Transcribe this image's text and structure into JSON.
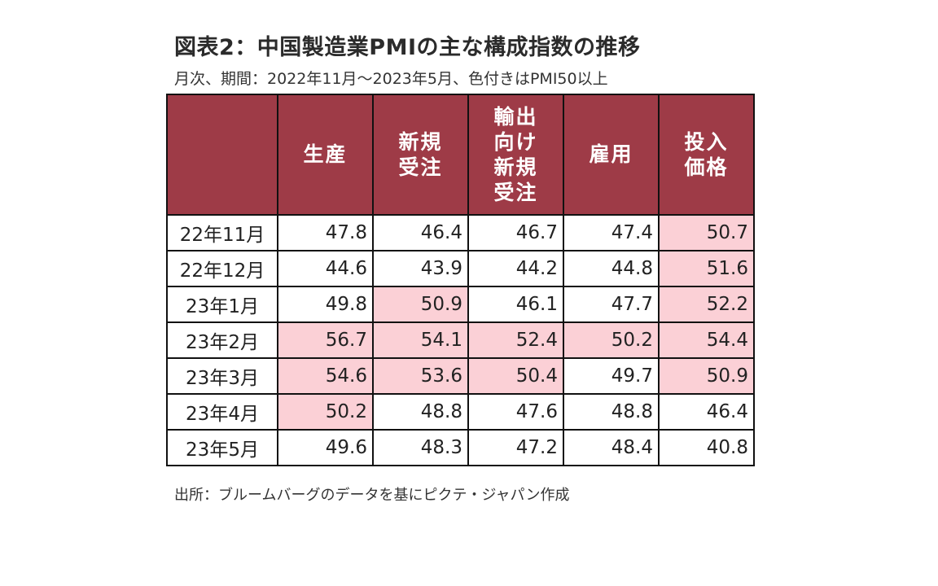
{
  "title": "図表2：中国製造業PMIの主な構成指数の推移",
  "subtitle": "月次、期間：2022年11月～2023年5月、色付きはPMI50以上",
  "source": "出所：ブルームバーグのデータを基にピクテ・ジャパン作成",
  "colors": {
    "header_bg": "#9e3b47",
    "highlight_bg": "#fbd0d6",
    "cell_bg": "#ffffff"
  },
  "chart_data": {
    "type": "table",
    "threshold": 50,
    "columns": [
      "",
      "生産",
      "新規\n受注",
      "輸出\n向け\n新規\n受注",
      "雇用",
      "投入\n価格"
    ],
    "rows": [
      {
        "label": "22年11月",
        "values": [
          47.8,
          46.4,
          46.7,
          47.4,
          50.7
        ]
      },
      {
        "label": "22年12月",
        "values": [
          44.6,
          43.9,
          44.2,
          44.8,
          51.6
        ]
      },
      {
        "label": "23年1月",
        "values": [
          49.8,
          50.9,
          46.1,
          47.7,
          52.2
        ]
      },
      {
        "label": "23年2月",
        "values": [
          56.7,
          54.1,
          52.4,
          50.2,
          54.4
        ]
      },
      {
        "label": "23年3月",
        "values": [
          54.6,
          53.6,
          50.4,
          49.7,
          50.9
        ]
      },
      {
        "label": "23年4月",
        "values": [
          50.2,
          48.8,
          47.6,
          48.8,
          46.4
        ]
      },
      {
        "label": "23年5月",
        "values": [
          49.6,
          48.3,
          47.2,
          48.4,
          40.8
        ]
      }
    ]
  }
}
